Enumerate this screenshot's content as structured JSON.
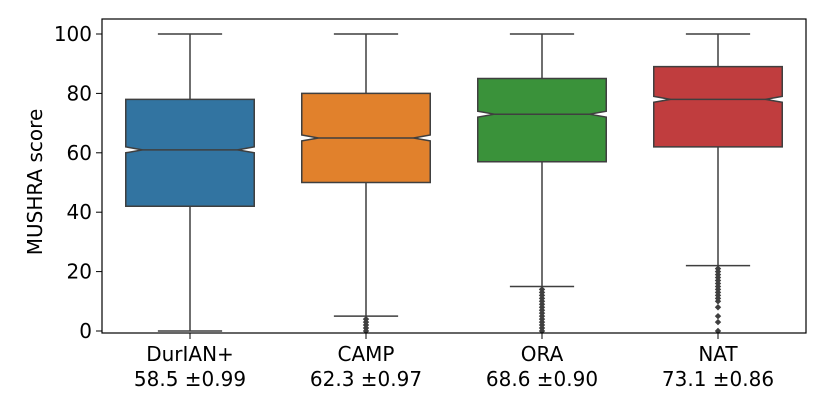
{
  "chart_data": {
    "type": "box",
    "title": "",
    "xlabel": "",
    "ylabel": "MUSHRA score",
    "ylim": [
      0,
      100
    ],
    "yticks": [
      0,
      20,
      40,
      60,
      80,
      100
    ],
    "notched": true,
    "grid": false,
    "legend": "none",
    "categories": [
      {
        "name": "DurIAN+",
        "stat": "58.5 ±0.99",
        "color": "#3274a1",
        "q1": 42,
        "median": 61,
        "q3": 78,
        "notch_low": 60,
        "notch_high": 62,
        "whisker_low": 0,
        "whisker_high": 100,
        "outliers": []
      },
      {
        "name": "CAMP",
        "stat": "62.3 ±0.97",
        "color": "#e1812c",
        "q1": 50,
        "median": 65,
        "q3": 80,
        "notch_low": 64,
        "notch_high": 66,
        "whisker_low": 5,
        "whisker_high": 100,
        "outliers": [
          0,
          1,
          2,
          3,
          4
        ]
      },
      {
        "name": "ORA",
        "stat": "68.6 ±0.90",
        "color": "#3a923a",
        "q1": 57,
        "median": 73,
        "q3": 85,
        "notch_low": 72,
        "notch_high": 74,
        "whisker_low": 15,
        "whisker_high": 100,
        "outliers": [
          0,
          1,
          2,
          3,
          4,
          5,
          6,
          7,
          8,
          9,
          10,
          11,
          12,
          13,
          14
        ]
      },
      {
        "name": "NAT",
        "stat": "73.1 ±0.86",
        "color": "#c03d3e",
        "q1": 62,
        "median": 78,
        "q3": 89,
        "notch_low": 77,
        "notch_high": 79,
        "whisker_low": 22,
        "whisker_high": 100,
        "outliers": [
          0,
          3,
          5,
          8,
          10,
          11,
          12,
          13,
          14,
          15,
          16,
          17,
          18,
          19,
          20,
          21
        ]
      }
    ]
  }
}
